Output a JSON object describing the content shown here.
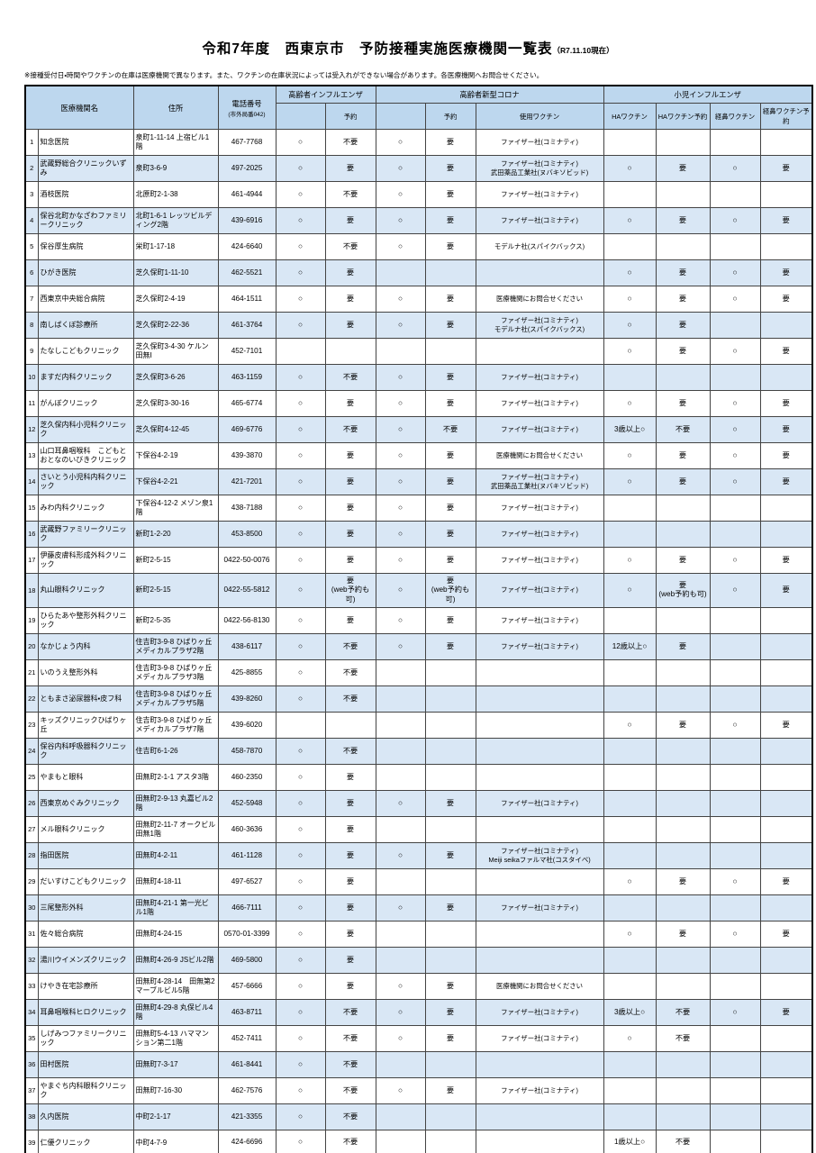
{
  "title": "令和7年度　西東京市　予防接種実施医療機関一覧表",
  "title_suffix": "（R7.11.10現在）",
  "note": "※接種受付日・時間やワクチンの在庫は医療機関で異なります。また、ワクチンの在庫状況によっては受入れができない場合があります。各医療機関へお問合せください。",
  "colors": {
    "header_bg": "#bdd7ee",
    "stripe_bg": "#d9e7f5"
  },
  "table": {
    "headers": {
      "name": "医療機関名",
      "address": "住所",
      "phone": "電話番号",
      "phone_sub": "(市外局番042)",
      "flu_group": "高齢者インフルエンザ",
      "covid_group": "高齢者新型コロナ",
      "kids_group": "小児インフルエンザ",
      "reserve": "予約",
      "vaccine_used": "使用ワクチン",
      "ha": "HAワクチン",
      "ha_reserve": "HAワクチン予約",
      "nasal": "経鼻ワクチン",
      "nasal_reserve": "経鼻ワクチン予約"
    },
    "rows": [
      [
        "1",
        "知念医院",
        "泉町1-11-14 上宿ビル1階",
        "467-7768",
        "○",
        "不要",
        "○",
        "要",
        "ファイザー社(コミナティ)",
        "",
        "",
        "",
        ""
      ],
      [
        "2",
        "武蔵野総合クリニックいずみ",
        "泉町3-6-9",
        "497-2025",
        "○",
        "要",
        "○",
        "要",
        "ファイザー社(コミナティ)\n武田薬品工業社(ヌバキソビッド)",
        "○",
        "要",
        "○",
        "要"
      ],
      [
        "3",
        "酒枝医院",
        "北原町2-1-38",
        "461-4944",
        "○",
        "不要",
        "○",
        "要",
        "ファイザー社(コミナティ)",
        "",
        "",
        "",
        ""
      ],
      [
        "4",
        "保谷北町かなざわファミリークリニック",
        "北町1-6-1 レッツビルディング2階",
        "439-6916",
        "○",
        "要",
        "○",
        "要",
        "ファイザー社(コミナティ)",
        "○",
        "要",
        "○",
        "要"
      ],
      [
        "5",
        "保谷厚生病院",
        "栄町1-17-18",
        "424-6640",
        "○",
        "不要",
        "○",
        "要",
        "モデルナ社(スパイクバックス)",
        "",
        "",
        "",
        ""
      ],
      [
        "6",
        "ひがき医院",
        "芝久保町1-11-10",
        "462-5521",
        "○",
        "要",
        "",
        "",
        "",
        "○",
        "要",
        "○",
        "要"
      ],
      [
        "7",
        "西東京中央総合病院",
        "芝久保町2-4-19",
        "464-1511",
        "○",
        "要",
        "○",
        "要",
        "医療機関にお問合せください",
        "○",
        "要",
        "○",
        "要"
      ],
      [
        "8",
        "南しばくぼ診療所",
        "芝久保町2-22-36",
        "461-3764",
        "○",
        "要",
        "○",
        "要",
        "ファイザー社(コミナティ)\nモデルナ社(スパイクバックス)",
        "○",
        "要",
        "",
        ""
      ],
      [
        "9",
        "たなしこどもクリニック",
        "芝久保町3-4-30 ケルン田無Ⅰ",
        "452-7101",
        "",
        "",
        "",
        "",
        "",
        "○",
        "要",
        "○",
        "要"
      ],
      [
        "10",
        "ますだ内科クリニック",
        "芝久保町3-6-26",
        "463-1159",
        "○",
        "不要",
        "○",
        "要",
        "ファイザー社(コミナティ)",
        "",
        "",
        "",
        ""
      ],
      [
        "11",
        "がんぼクリニック",
        "芝久保町3-30-16",
        "465-6774",
        "○",
        "要",
        "○",
        "要",
        "ファイザー社(コミナティ)",
        "○",
        "要",
        "○",
        "要"
      ],
      [
        "12",
        "芝久保内科小児科クリニック",
        "芝久保町4-12-45",
        "469-6776",
        "○",
        "不要",
        "○",
        "不要",
        "ファイザー社(コミナティ)",
        "3歳以上○",
        "不要",
        "○",
        "要"
      ],
      [
        "13",
        "山口耳鼻咽喉科　こどもとおとなのいびきクリニック",
        "下保谷4-2-19",
        "439-3870",
        "○",
        "要",
        "○",
        "要",
        "医療機関にお問合せください",
        "○",
        "要",
        "○",
        "要"
      ],
      [
        "14",
        "さいとう小児科内科クリニック",
        "下保谷4-2-21",
        "421-7201",
        "○",
        "要",
        "○",
        "要",
        "ファイザー社(コミナティ)\n武田薬品工業社(ヌバキソビッド)",
        "○",
        "要",
        "○",
        "要"
      ],
      [
        "15",
        "みわ内科クリニック",
        "下保谷4-12-2 メゾン泉1階",
        "438-7188",
        "○",
        "要",
        "○",
        "要",
        "ファイザー社(コミナティ)",
        "",
        "",
        "",
        ""
      ],
      [
        "16",
        "武蔵野ファミリークリニック",
        "新町1-2-20",
        "453-8500",
        "○",
        "要",
        "○",
        "要",
        "ファイザー社(コミナティ)",
        "",
        "",
        "",
        ""
      ],
      [
        "17",
        "伊藤皮膚科形成外科クリニック",
        "新町2-5-15",
        "0422-50-0076",
        "○",
        "要",
        "○",
        "要",
        "ファイザー社(コミナティ)",
        "○",
        "要",
        "○",
        "要"
      ],
      [
        "18",
        "丸山眼科クリニック",
        "新町2-5-15",
        "0422-55-5812",
        "○",
        "要\n(web予約も可)",
        "○",
        "要\n(web予約も可)",
        "ファイザー社(コミナティ)",
        "○",
        "要\n(web予約も可)",
        "○",
        "要"
      ],
      [
        "19",
        "ひらたあや整形外科クリニック",
        "新町2-5-35",
        "0422-56-8130",
        "○",
        "要",
        "○",
        "要",
        "ファイザー社(コミナティ)",
        "",
        "",
        "",
        ""
      ],
      [
        "20",
        "なかじょう内科",
        "住吉町3-9-8 ひばりヶ丘メディカルプラザ2階",
        "438-6117",
        "○",
        "不要",
        "○",
        "要",
        "ファイザー社(コミナティ)",
        "12歳以上○",
        "要",
        "",
        ""
      ],
      [
        "21",
        "いのうえ整形外科",
        "住吉町3-9-8 ひばりヶ丘メディカルプラザ3階",
        "425-8855",
        "○",
        "不要",
        "",
        "",
        "",
        "",
        "",
        "",
        ""
      ],
      [
        "22",
        "ともまさ泌尿器科・皮フ科",
        "住吉町3-9-8 ひばりヶ丘メディカルプラザ5階",
        "439-8260",
        "○",
        "不要",
        "",
        "",
        "",
        "",
        "",
        "",
        ""
      ],
      [
        "23",
        "キッズクリニックひばりヶ丘",
        "住吉町3-9-8 ひばりヶ丘メディカルプラザ7階",
        "439-6020",
        "",
        "",
        "",
        "",
        "",
        "○",
        "要",
        "○",
        "要"
      ],
      [
        "24",
        "保谷内科呼吸器科クリニック",
        "住吉町6-1-26",
        "458-7870",
        "○",
        "不要",
        "",
        "",
        "",
        "",
        "",
        "",
        ""
      ],
      [
        "25",
        "やまもと眼科",
        "田無町2-1-1 アスタ3階",
        "460-2350",
        "○",
        "要",
        "",
        "",
        "",
        "",
        "",
        "",
        ""
      ],
      [
        "26",
        "西東京めぐみクリニック",
        "田無町2-9-13 丸嘉ビル2階",
        "452-5948",
        "○",
        "要",
        "○",
        "要",
        "ファイザー社(コミナティ)",
        "",
        "",
        "",
        ""
      ],
      [
        "27",
        "メル眼科クリニック",
        "田無町2-11-7 オークビル田無1階",
        "460-3636",
        "○",
        "要",
        "",
        "",
        "",
        "",
        "",
        "",
        ""
      ],
      [
        "28",
        "指田医院",
        "田無町4-2-11",
        "461-1128",
        "○",
        "要",
        "○",
        "要",
        "ファイザー社(コミナティ)\nMeiji seikaファルマ社(コスタイベ)",
        "",
        "",
        "",
        ""
      ],
      [
        "29",
        "だいすけこどもクリニック",
        "田無町4-18-11",
        "497-6527",
        "○",
        "要",
        "",
        "",
        "",
        "○",
        "要",
        "○",
        "要"
      ],
      [
        "30",
        "三尾整形外科",
        "田無町4-21-1 第一光ビル1階",
        "466-7111",
        "○",
        "要",
        "○",
        "要",
        "ファイザー社(コミナティ)",
        "",
        "",
        "",
        ""
      ],
      [
        "31",
        "佐々総合病院",
        "田無町4-24-15",
        "0570-01-3399",
        "○",
        "要",
        "",
        "",
        "",
        "○",
        "要",
        "○",
        "要"
      ],
      [
        "32",
        "湯川ウイメンズクリニック",
        "田無町4-26-9 JSビル2階",
        "469-5800",
        "○",
        "要",
        "",
        "",
        "",
        "",
        "",
        "",
        ""
      ],
      [
        "33",
        "けやき在宅診療所",
        "田無町4-28-14　田無第2マーブルビル5階",
        "457-6666",
        "○",
        "要",
        "○",
        "要",
        "医療機関にお問合せください",
        "",
        "",
        "",
        ""
      ],
      [
        "34",
        "耳鼻咽喉科ヒロクリニック",
        "田無町4-29-8 丸保ビル4階",
        "463-8711",
        "○",
        "不要",
        "○",
        "要",
        "ファイザー社(コミナティ)",
        "3歳以上○",
        "不要",
        "○",
        "要"
      ],
      [
        "35",
        "しげみつファミリークリニック",
        "田無町5-4-13 ハママンション第二1階",
        "452-7411",
        "○",
        "不要",
        "○",
        "要",
        "ファイザー社(コミナティ)",
        "○",
        "不要",
        "",
        ""
      ],
      [
        "36",
        "田村医院",
        "田無町7-3-17",
        "461-8441",
        "○",
        "不要",
        "",
        "",
        "",
        "",
        "",
        "",
        ""
      ],
      [
        "37",
        "やまぐち内科眼科クリニック",
        "田無町7-16-30",
        "462-7576",
        "○",
        "不要",
        "○",
        "要",
        "ファイザー社(コミナティ)",
        "",
        "",
        "",
        ""
      ],
      [
        "38",
        "久内医院",
        "中町2-1-17",
        "421-3355",
        "○",
        "不要",
        "",
        "",
        "",
        "",
        "",
        "",
        ""
      ],
      [
        "39",
        "仁優クリニック",
        "中町4-7-9",
        "424-6696",
        "○",
        "不要",
        "",
        "",
        "",
        "1歳以上○",
        "不要",
        "",
        ""
      ]
    ]
  }
}
